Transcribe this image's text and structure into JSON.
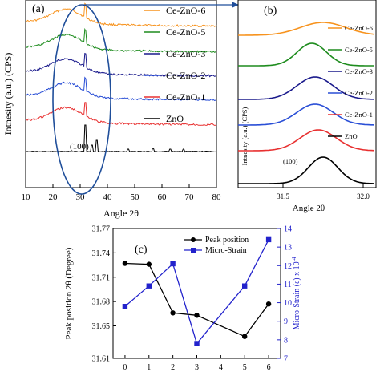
{
  "chart_data": [
    {
      "panel": "(a)",
      "type": "line",
      "xlabel": "Angle 2θ",
      "ylabel": "Intnesity (a.u.) (CPS)",
      "xlim": [
        10,
        80
      ],
      "xticks": [
        10,
        20,
        30,
        40,
        50,
        60,
        70,
        80
      ],
      "annotations": [
        "(100)"
      ],
      "series": [
        {
          "name": "Ce-ZnO-6",
          "color": "#f7931e"
        },
        {
          "name": "Ce-ZnO-5",
          "color": "#1e8c1e"
        },
        {
          "name": "Ce-ZnO-3",
          "color": "#1a1a8c"
        },
        {
          "name": "Ce-ZnO-2",
          "color": "#2a4fd6"
        },
        {
          "name": "Ce-ZnO-1",
          "color": "#e83030"
        },
        {
          "name": "ZnO",
          "color": "#000000"
        }
      ]
    },
    {
      "panel": "(b)",
      "type": "line",
      "xlabel": "Angle 2θ",
      "ylabel": "Intnesity (a.u.) (CPS)",
      "xticks": [
        31.5,
        32.0
      ],
      "xtick_labels": [
        "31.5",
        "32.0"
      ],
      "annotations": [
        "(100)"
      ],
      "series": [
        {
          "name": "Ce-ZnO-6",
          "color": "#f7931e"
        },
        {
          "name": "Ce-ZnO-5",
          "color": "#1e8c1e"
        },
        {
          "name": "Ce-ZnO-3",
          "color": "#1a1a8c"
        },
        {
          "name": "Ce-ZnO-2",
          "color": "#2a4fd6"
        },
        {
          "name": "Ce-ZnO-1",
          "color": "#e83030"
        },
        {
          "name": "ZnO",
          "color": "#000000"
        }
      ]
    },
    {
      "panel": "(c)",
      "type": "line",
      "xlim": [
        -0.5,
        6.5
      ],
      "xticks": [
        0,
        1,
        2,
        3,
        4,
        5,
        6
      ],
      "ylabel": "Peak position 2θ (Degree)",
      "ylim": [
        31.61,
        31.77
      ],
      "yticks": [
        31.61,
        31.65,
        31.68,
        31.71,
        31.74,
        31.77
      ],
      "ytick_labels": [
        "31.61",
        "31.65",
        "31.68",
        "31.71",
        "31.74",
        "31.77"
      ],
      "y2label": "Micro-Strain (ε) x 10",
      "y2label_exp": "-4",
      "y2lim": [
        7,
        14
      ],
      "y2ticks": [
        7,
        8,
        9,
        10,
        11,
        12,
        13,
        14
      ],
      "series": [
        {
          "name": "Peak position",
          "axis": "left",
          "color": "#000000",
          "marker": "circle",
          "x": [
            0,
            1,
            2,
            3,
            5,
            6
          ],
          "y": [
            31.727,
            31.726,
            31.666,
            31.663,
            31.637,
            31.677
          ]
        },
        {
          "name": "Micro-Strain",
          "axis": "right",
          "color": "#2222cc",
          "marker": "square",
          "x": [
            0,
            1,
            2,
            3,
            5,
            6
          ],
          "y": [
            9.8,
            10.9,
            12.1,
            7.8,
            10.9,
            13.4
          ]
        }
      ]
    }
  ]
}
